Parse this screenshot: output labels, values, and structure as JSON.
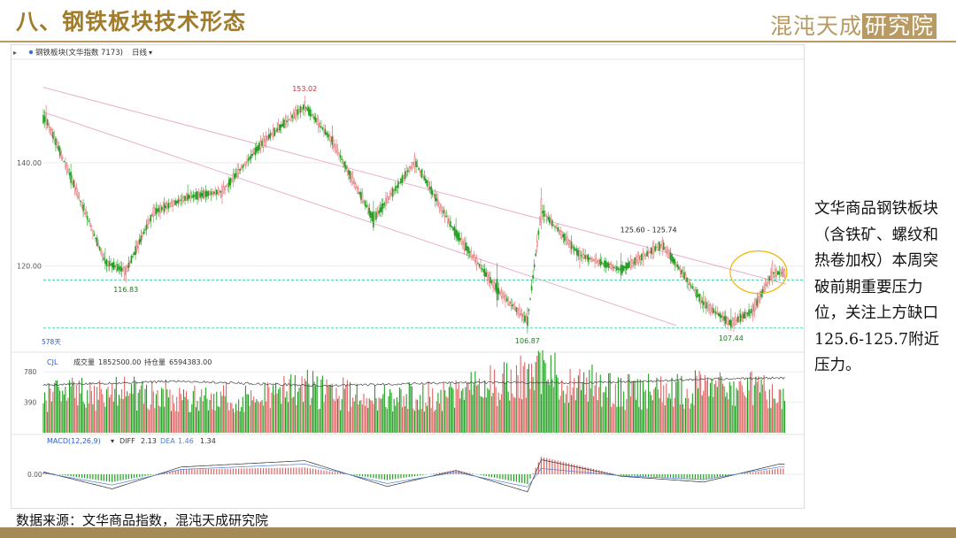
{
  "header": {
    "title": "八、钢铁板块技术形态",
    "logo_text": "混沌天成",
    "logo_box_text": "研究院"
  },
  "chart_header": {
    "symbol_label": "钢铁板块(文华指数 7173)",
    "period": "日线",
    "period_arrow": "chevron-down-icon"
  },
  "colors": {
    "up": "#e06464",
    "down": "#219e21",
    "trendline": "#e8a6c8",
    "support": "#3fd4a4",
    "highlight_circle": "#f2b400",
    "header_gold": "#a07c2c",
    "diff_line": "#333333",
    "dea_line": "#4a7fd6"
  },
  "chart_data": [
    {
      "type": "candlestick",
      "ylim": [
        104,
        159
      ],
      "yticks": [
        120,
        140
      ],
      "ytick_labels": [
        "120.00",
        "140.00"
      ],
      "bars_shown_label": "578天",
      "candles": [
        {
          "i": 2,
          "o": 147.5,
          "h": 151.2,
          "l": 146.3,
          "c": 149.4
        },
        {
          "i": 20,
          "o": 138.2,
          "h": 139.8,
          "l": 135.0,
          "c": 136.1
        },
        {
          "i": 45,
          "o": 121.0,
          "h": 123.5,
          "l": 119.2,
          "c": 120.5
        },
        {
          "i": 60,
          "o": 118.2,
          "h": 120.3,
          "l": 116.8,
          "c": 119.8
        },
        {
          "i": 80,
          "o": 129.5,
          "h": 132.0,
          "l": 128.4,
          "c": 131.3
        },
        {
          "i": 105,
          "o": 134.0,
          "h": 135.8,
          "l": 132.1,
          "c": 132.7
        },
        {
          "i": 130,
          "o": 133.5,
          "h": 136.0,
          "l": 132.0,
          "c": 135.4
        },
        {
          "i": 160,
          "o": 143.0,
          "h": 145.9,
          "l": 142.0,
          "c": 145.2
        },
        {
          "i": 190,
          "o": 150.2,
          "h": 153.0,
          "l": 149.0,
          "c": 151.8
        },
        {
          "i": 210,
          "o": 145.0,
          "h": 147.2,
          "l": 142.6,
          "c": 143.5
        },
        {
          "i": 240,
          "o": 130.5,
          "h": 132.6,
          "l": 126.8,
          "c": 127.5
        },
        {
          "i": 270,
          "o": 139.2,
          "h": 142.0,
          "l": 138.0,
          "c": 141.2
        },
        {
          "i": 300,
          "o": 127.0,
          "h": 129.3,
          "l": 124.8,
          "c": 125.6
        },
        {
          "i": 330,
          "o": 117.5,
          "h": 120.6,
          "l": 112.0,
          "c": 113.4
        },
        {
          "i": 352,
          "o": 110.2,
          "h": 112.0,
          "l": 106.9,
          "c": 108.4
        },
        {
          "i": 362,
          "o": 128.5,
          "h": 135.2,
          "l": 127.1,
          "c": 133.0
        },
        {
          "i": 390,
          "o": 121.4,
          "h": 123.8,
          "l": 119.6,
          "c": 122.9
        },
        {
          "i": 420,
          "o": 120.2,
          "h": 122.5,
          "l": 117.5,
          "c": 118.3
        },
        {
          "i": 450,
          "o": 123.5,
          "h": 125.7,
          "l": 122.0,
          "c": 124.9
        },
        {
          "i": 480,
          "o": 113.0,
          "h": 115.2,
          "l": 111.0,
          "c": 112.5
        },
        {
          "i": 500,
          "o": 109.5,
          "h": 111.8,
          "l": 107.4,
          "c": 108.2
        },
        {
          "i": 516,
          "o": 110.5,
          "h": 113.0,
          "l": 109.2,
          "c": 112.4
        },
        {
          "i": 530,
          "o": 117.0,
          "h": 121.1,
          "l": 116.3,
          "c": 120.3
        }
      ],
      "annotations": [
        {
          "text": "153.02",
          "x": 190,
          "y": 153.02,
          "color": "#c8323c"
        },
        {
          "text": "116.83",
          "x": 60,
          "y": 116.83,
          "color": "#1e7b1e"
        },
        {
          "text": "106.87",
          "x": 352,
          "y": 106.87,
          "color": "#1e7b1e"
        },
        {
          "text": "107.44",
          "x": 500,
          "y": 107.44,
          "color": "#1e7b1e"
        },
        {
          "text": "125.60 - 125.74",
          "x": 440,
          "y": 125.7,
          "color": "#222222"
        }
      ],
      "trendlines": [
        {
          "x1": 0,
          "y1": 154.6,
          "x2": 540,
          "y2": 116.5
        },
        {
          "x1": 0,
          "y1": 149.8,
          "x2": 460,
          "y2": 108.5
        }
      ],
      "support_lines": [
        117.3,
        108.0
      ],
      "highlight": {
        "x": 520,
        "y": 118.8
      }
    },
    {
      "type": "bar",
      "label": "CJL",
      "vol_label": "成交量",
      "vol_value": "1852500.00",
      "oi_label": "持仓量",
      "oi_value": "6594383.00",
      "ylim": [
        0,
        860
      ],
      "yticks": [
        390,
        780
      ],
      "ytick_labels": [
        "390",
        "780"
      ],
      "values": [
        {
          "i": 0,
          "v": 470
        },
        {
          "i": 60,
          "v": 520
        },
        {
          "i": 120,
          "v": 420
        },
        {
          "i": 190,
          "v": 560
        },
        {
          "i": 250,
          "v": 430
        },
        {
          "i": 300,
          "v": 500
        },
        {
          "i": 350,
          "v": 690
        },
        {
          "i": 362,
          "v": 760
        },
        {
          "i": 420,
          "v": 520
        },
        {
          "i": 470,
          "v": 560
        },
        {
          "i": 530,
          "v": 540
        }
      ],
      "open_interest": [
        {
          "i": 0,
          "v": 610
        },
        {
          "i": 100,
          "v": 660
        },
        {
          "i": 200,
          "v": 600
        },
        {
          "i": 300,
          "v": 640
        },
        {
          "i": 400,
          "v": 640
        },
        {
          "i": 500,
          "v": 690
        },
        {
          "i": 535,
          "v": 700
        }
      ]
    },
    {
      "type": "line",
      "label": "MACD(12,26,9)",
      "diff_label": "DIFF",
      "diff_value": "2.13",
      "dea_label": "DEA",
      "dea_value": "1.46",
      "macd_value": "1.34",
      "ylim": [
        -6,
        6
      ],
      "yticks": [
        0
      ],
      "ytick_labels": [
        "0.00"
      ],
      "diff": [
        {
          "i": 0,
          "v": 0.5
        },
        {
          "i": 50,
          "v": -3.0
        },
        {
          "i": 100,
          "v": 1.5
        },
        {
          "i": 190,
          "v": 2.8
        },
        {
          "i": 250,
          "v": -2.5
        },
        {
          "i": 300,
          "v": 0.8
        },
        {
          "i": 352,
          "v": -3.6
        },
        {
          "i": 362,
          "v": 3.0
        },
        {
          "i": 420,
          "v": -0.4
        },
        {
          "i": 480,
          "v": -1.6
        },
        {
          "i": 535,
          "v": 2.1
        }
      ],
      "dea": [
        {
          "i": 0,
          "v": 0.3
        },
        {
          "i": 50,
          "v": -2.2
        },
        {
          "i": 100,
          "v": 1.0
        },
        {
          "i": 190,
          "v": 2.1
        },
        {
          "i": 250,
          "v": -1.9
        },
        {
          "i": 300,
          "v": 0.4
        },
        {
          "i": 352,
          "v": -2.6
        },
        {
          "i": 362,
          "v": 1.2
        },
        {
          "i": 420,
          "v": -0.3
        },
        {
          "i": 480,
          "v": -1.1
        },
        {
          "i": 535,
          "v": 1.5
        }
      ]
    }
  ],
  "note": "文华商品钢铁板块（含铁矿、螺纹和热卷加权）本周突破前期重要压力位，关注上方缺口125.6-125.7附近压力。",
  "source": "数据来源：文华商品指数，混沌天成研究院"
}
